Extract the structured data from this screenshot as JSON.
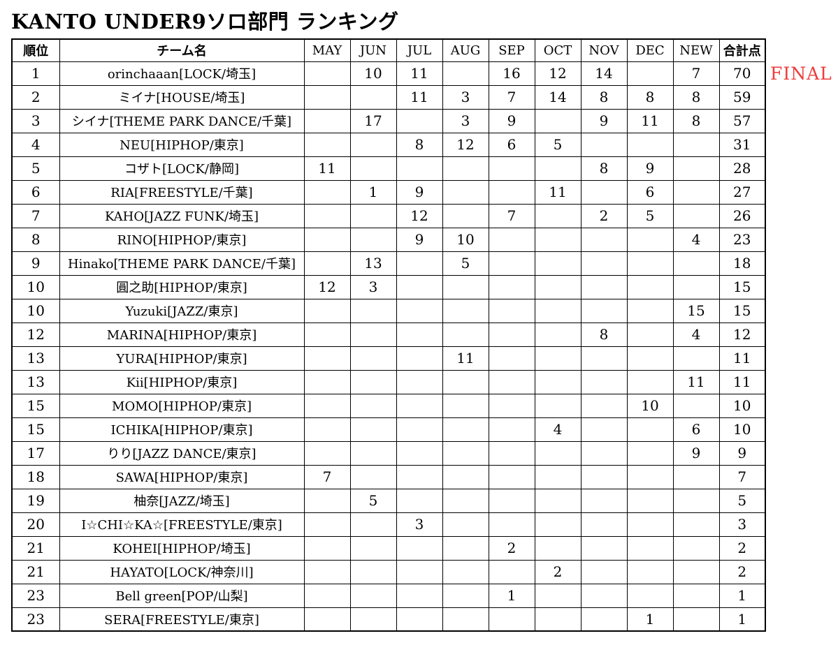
{
  "title": "KANTO UNDER9ソロ部門 ランキング",
  "final_label": "FINAL",
  "colors": {
    "final_text": "#ee3b3b",
    "border": "#000000",
    "text": "#000000",
    "background": "#ffffff"
  },
  "table": {
    "headers": [
      "順位",
      "チーム名",
      "MAY",
      "JUN",
      "JUL",
      "AUG",
      "SEP",
      "OCT",
      "NOV",
      "DEC",
      "NEW",
      "合計点"
    ],
    "month_columns": [
      "MAY",
      "JUN",
      "JUL",
      "AUG",
      "SEP",
      "OCT",
      "NOV",
      "DEC",
      "NEW"
    ],
    "rows": [
      {
        "rank": "1",
        "team": "orinchaaan[LOCK/埼玉]",
        "scores": [
          "",
          "10",
          "11",
          "",
          "16",
          "12",
          "14",
          "",
          "7"
        ],
        "total": "70"
      },
      {
        "rank": "2",
        "team": "ミイナ[HOUSE/埼玉]",
        "scores": [
          "",
          "",
          "11",
          "3",
          "7",
          "14",
          "8",
          "8",
          "8"
        ],
        "total": "59"
      },
      {
        "rank": "3",
        "team": "シイナ[THEME PARK DANCE/千葉]",
        "scores": [
          "",
          "17",
          "",
          "3",
          "9",
          "",
          "9",
          "11",
          "8"
        ],
        "total": "57"
      },
      {
        "rank": "4",
        "team": "NEU[HIPHOP/東京]",
        "scores": [
          "",
          "",
          "8",
          "12",
          "6",
          "5",
          "",
          "",
          ""
        ],
        "total": "31"
      },
      {
        "rank": "5",
        "team": "コザト[LOCK/静岡]",
        "scores": [
          "11",
          "",
          "",
          "",
          "",
          "",
          "8",
          "9",
          ""
        ],
        "total": "28"
      },
      {
        "rank": "6",
        "team": "RIA[FREESTYLE/千葉]",
        "scores": [
          "",
          "1",
          "9",
          "",
          "",
          "11",
          "",
          "6",
          ""
        ],
        "total": "27"
      },
      {
        "rank": "7",
        "team": "KAHO[JAZZ FUNK/埼玉]",
        "scores": [
          "",
          "",
          "12",
          "",
          "7",
          "",
          "2",
          "5",
          ""
        ],
        "total": "26"
      },
      {
        "rank": "8",
        "team": "RINO[HIPHOP/東京]",
        "scores": [
          "",
          "",
          "9",
          "10",
          "",
          "",
          "",
          "",
          "4"
        ],
        "total": "23"
      },
      {
        "rank": "9",
        "team": "Hinako[THEME PARK DANCE/千葉]",
        "scores": [
          "",
          "13",
          "",
          "5",
          "",
          "",
          "",
          "",
          ""
        ],
        "total": "18"
      },
      {
        "rank": "10",
        "team": "圓之助[HIPHOP/東京]",
        "scores": [
          "12",
          "3",
          "",
          "",
          "",
          "",
          "",
          "",
          ""
        ],
        "total": "15"
      },
      {
        "rank": "10",
        "team": "Yuzuki[JAZZ/東京]",
        "scores": [
          "",
          "",
          "",
          "",
          "",
          "",
          "",
          "",
          "15"
        ],
        "total": "15"
      },
      {
        "rank": "12",
        "team": "MARINA[HIPHOP/東京]",
        "scores": [
          "",
          "",
          "",
          "",
          "",
          "",
          "8",
          "",
          "4"
        ],
        "total": "12"
      },
      {
        "rank": "13",
        "team": "YURA[HIPHOP/東京]",
        "scores": [
          "",
          "",
          "",
          "11",
          "",
          "",
          "",
          "",
          ""
        ],
        "total": "11"
      },
      {
        "rank": "13",
        "team": "Kii[HIPHOP/東京]",
        "scores": [
          "",
          "",
          "",
          "",
          "",
          "",
          "",
          "",
          "11"
        ],
        "total": "11"
      },
      {
        "rank": "15",
        "team": "MOMO[HIPHOP/東京]",
        "scores": [
          "",
          "",
          "",
          "",
          "",
          "",
          "",
          "10",
          ""
        ],
        "total": "10"
      },
      {
        "rank": "15",
        "team": "ICHIKA[HIPHOP/東京]",
        "scores": [
          "",
          "",
          "",
          "",
          "",
          "4",
          "",
          "",
          "6"
        ],
        "total": "10"
      },
      {
        "rank": "17",
        "team": "りり[JAZZ DANCE/東京]",
        "scores": [
          "",
          "",
          "",
          "",
          "",
          "",
          "",
          "",
          "9"
        ],
        "total": "9"
      },
      {
        "rank": "18",
        "team": "SAWA[HIPHOP/東京]",
        "scores": [
          "7",
          "",
          "",
          "",
          "",
          "",
          "",
          "",
          ""
        ],
        "total": "7"
      },
      {
        "rank": "19",
        "team": "柚奈[JAZZ/埼玉]",
        "scores": [
          "",
          "5",
          "",
          "",
          "",
          "",
          "",
          "",
          ""
        ],
        "total": "5"
      },
      {
        "rank": "20",
        "team": "I☆CHI☆KA☆[FREESTYLE/東京]",
        "scores": [
          "",
          "",
          "3",
          "",
          "",
          "",
          "",
          "",
          ""
        ],
        "total": "3"
      },
      {
        "rank": "21",
        "team": "KOHEI[HIPHOP/埼玉]",
        "scores": [
          "",
          "",
          "",
          "",
          "2",
          "",
          "",
          "",
          ""
        ],
        "total": "2"
      },
      {
        "rank": "21",
        "team": "HAYATO[LOCK/神奈川]",
        "scores": [
          "",
          "",
          "",
          "",
          "",
          "2",
          "",
          "",
          ""
        ],
        "total": "2"
      },
      {
        "rank": "23",
        "team": "Bell green[POP/山梨]",
        "scores": [
          "",
          "",
          "",
          "",
          "1",
          "",
          "",
          "",
          ""
        ],
        "total": "1"
      },
      {
        "rank": "23",
        "team": "SERA[FREESTYLE/東京]",
        "scores": [
          "",
          "",
          "",
          "",
          "",
          "",
          "",
          "1",
          ""
        ],
        "total": "1"
      }
    ]
  }
}
